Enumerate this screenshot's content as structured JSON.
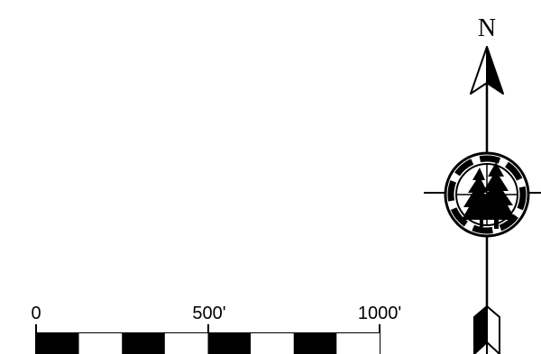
{
  "north_arrow": {
    "letter": "N",
    "icon": "compass-rose-with-pine-trees-icon"
  },
  "scale_bar": {
    "labels": [
      "0",
      "500'",
      "1000'"
    ],
    "distances_ft": [
      0,
      500,
      1000
    ],
    "segment_colors": [
      "#000000",
      "#ffffff",
      "#000000",
      "#ffffff",
      "#000000",
      "#ffffff",
      "#000000",
      "#ffffff"
    ]
  },
  "colors": {
    "ink": "#000000",
    "paper": "#ffffff"
  }
}
